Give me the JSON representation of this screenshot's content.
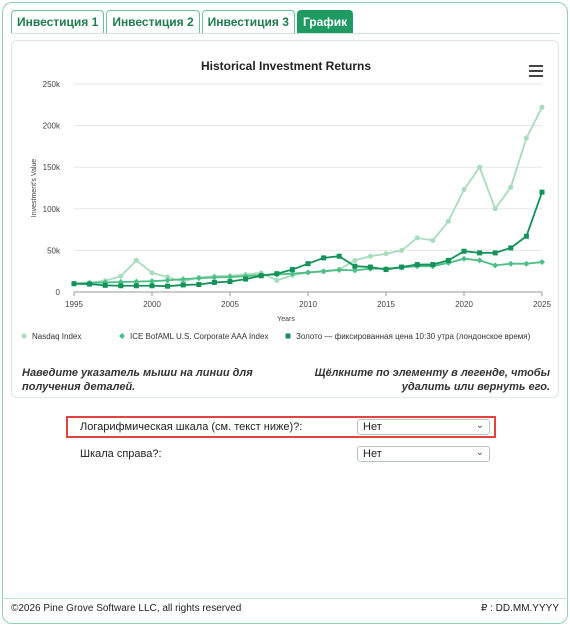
{
  "tabs": [
    {
      "label": "Инвестиция 1",
      "active": false
    },
    {
      "label": "Инвестиция 2",
      "active": false
    },
    {
      "label": "Инвестиция 3",
      "active": false
    },
    {
      "label": "График",
      "active": true
    }
  ],
  "chart_data": {
    "type": "line",
    "title": "Historical Investment Returns",
    "xlabel": "Years",
    "ylabel": "Investment's Value",
    "xlim": [
      1995,
      2025
    ],
    "ylim": [
      0,
      250000
    ],
    "x_ticks": [
      1995,
      2000,
      2005,
      2010,
      2015,
      2020,
      2025
    ],
    "y_ticks": [
      0,
      50000,
      100000,
      150000,
      200000,
      250000
    ],
    "y_tick_labels": [
      "0",
      "50k",
      "100k",
      "150k",
      "200k",
      "250k"
    ],
    "grid": true,
    "legend": "bottom",
    "x": [
      1995,
      1996,
      1997,
      1998,
      1999,
      2000,
      2001,
      2002,
      2003,
      2004,
      2005,
      2006,
      2007,
      2008,
      2009,
      2010,
      2011,
      2012,
      2013,
      2014,
      2015,
      2016,
      2017,
      2018,
      2019,
      2020,
      2021,
      2022,
      2023,
      2024,
      2025
    ],
    "series": [
      {
        "name": "Nasdaq Index",
        "color": "#a8dcbc",
        "marker": "circle",
        "values": [
          10000,
          11200,
          13500,
          19000,
          38000,
          23000,
          18000,
          12500,
          17500,
          19000,
          19500,
          21000,
          23000,
          14000,
          20000,
          23500,
          24500,
          27000,
          38000,
          43000,
          46000,
          50000,
          65000,
          62000,
          85000,
          123000,
          150000,
          100000,
          126000,
          185000,
          222000
        ]
      },
      {
        "name": "ICE BofAML U.S. Corporate AAA Index",
        "color": "#4bbf86",
        "marker": "diamond",
        "values": [
          10000,
          10800,
          11500,
          12000,
          12500,
          13000,
          14000,
          15500,
          16500,
          17500,
          18000,
          19000,
          20500,
          21000,
          22000,
          23500,
          25000,
          26500,
          26000,
          28000,
          28000,
          29500,
          31000,
          31000,
          35000,
          40000,
          38000,
          32000,
          34000,
          34000,
          36000
        ]
      },
      {
        "name": "Золото — фиксированная цена 10:30 утра (лондонское время)",
        "color": "#13925a",
        "marker": "square",
        "values": [
          10000,
          9500,
          8000,
          7500,
          7500,
          7500,
          7000,
          8500,
          9000,
          11500,
          12500,
          15500,
          19500,
          22000,
          27000,
          34000,
          41000,
          43000,
          31000,
          30000,
          27000,
          30000,
          33000,
          33000,
          38000,
          49000,
          47000,
          47000,
          53000,
          67000,
          120000
        ]
      }
    ]
  },
  "hints": {
    "left": "Наведите указатель мыши на линии для получения деталей.",
    "right": "Щёлкните по элементу в легенде, чтобы удалить или вернуть его."
  },
  "options": {
    "log_scale": {
      "label": "Логарифмическая шкала (см. текст ниже)?:",
      "value": "Нет"
    },
    "scale_right": {
      "label": "Шкала справа?:",
      "value": "Нет"
    }
  },
  "footer": {
    "copyright": "©2026 Pine Grove Software LLC, all rights reserved",
    "date": "₽ : DD.MM.YYYY"
  }
}
